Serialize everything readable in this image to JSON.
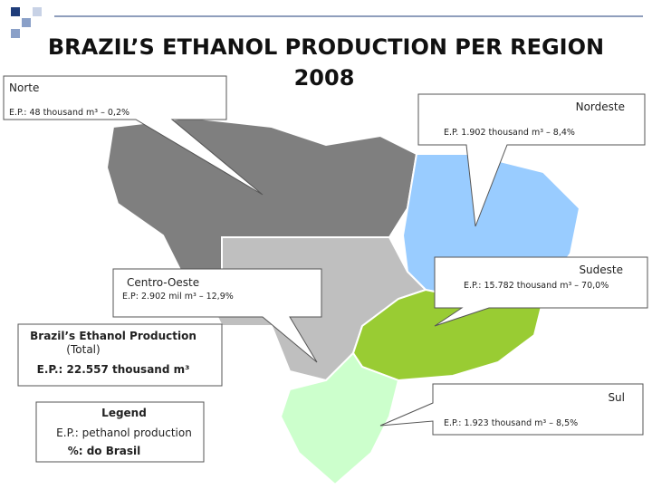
{
  "title": "BRAZIL’S ETHANOL PRODUCTION PER REGION",
  "year": "2008",
  "regions": [
    {
      "name": "Norte",
      "text": "E.P.: 48 thousand m³ – 0,2%"
    },
    {
      "name": "Nordeste",
      "text": "E.P. 1.902 thousand m³ – 8,4%"
    },
    {
      "name": "Centro-Oeste",
      "text": "E.P: 2.902 mil m³ – 12,9%"
    },
    {
      "name": "Sudeste",
      "text": "E.P.: 15.782 thousand m³ – 70,0%"
    },
    {
      "name": "Sul",
      "text": "E.P.: 1.923 thousand m³ – 8,5%"
    }
  ],
  "total": {
    "line1": "Brazil’s Ethanol Production",
    "line2": "(Total)",
    "line3": "E.P.: 22.557 thousand m³"
  },
  "legend": {
    "title": "Legend",
    "line1": "E.P.: pethanol production",
    "line2": "%: do Brasil"
  }
}
